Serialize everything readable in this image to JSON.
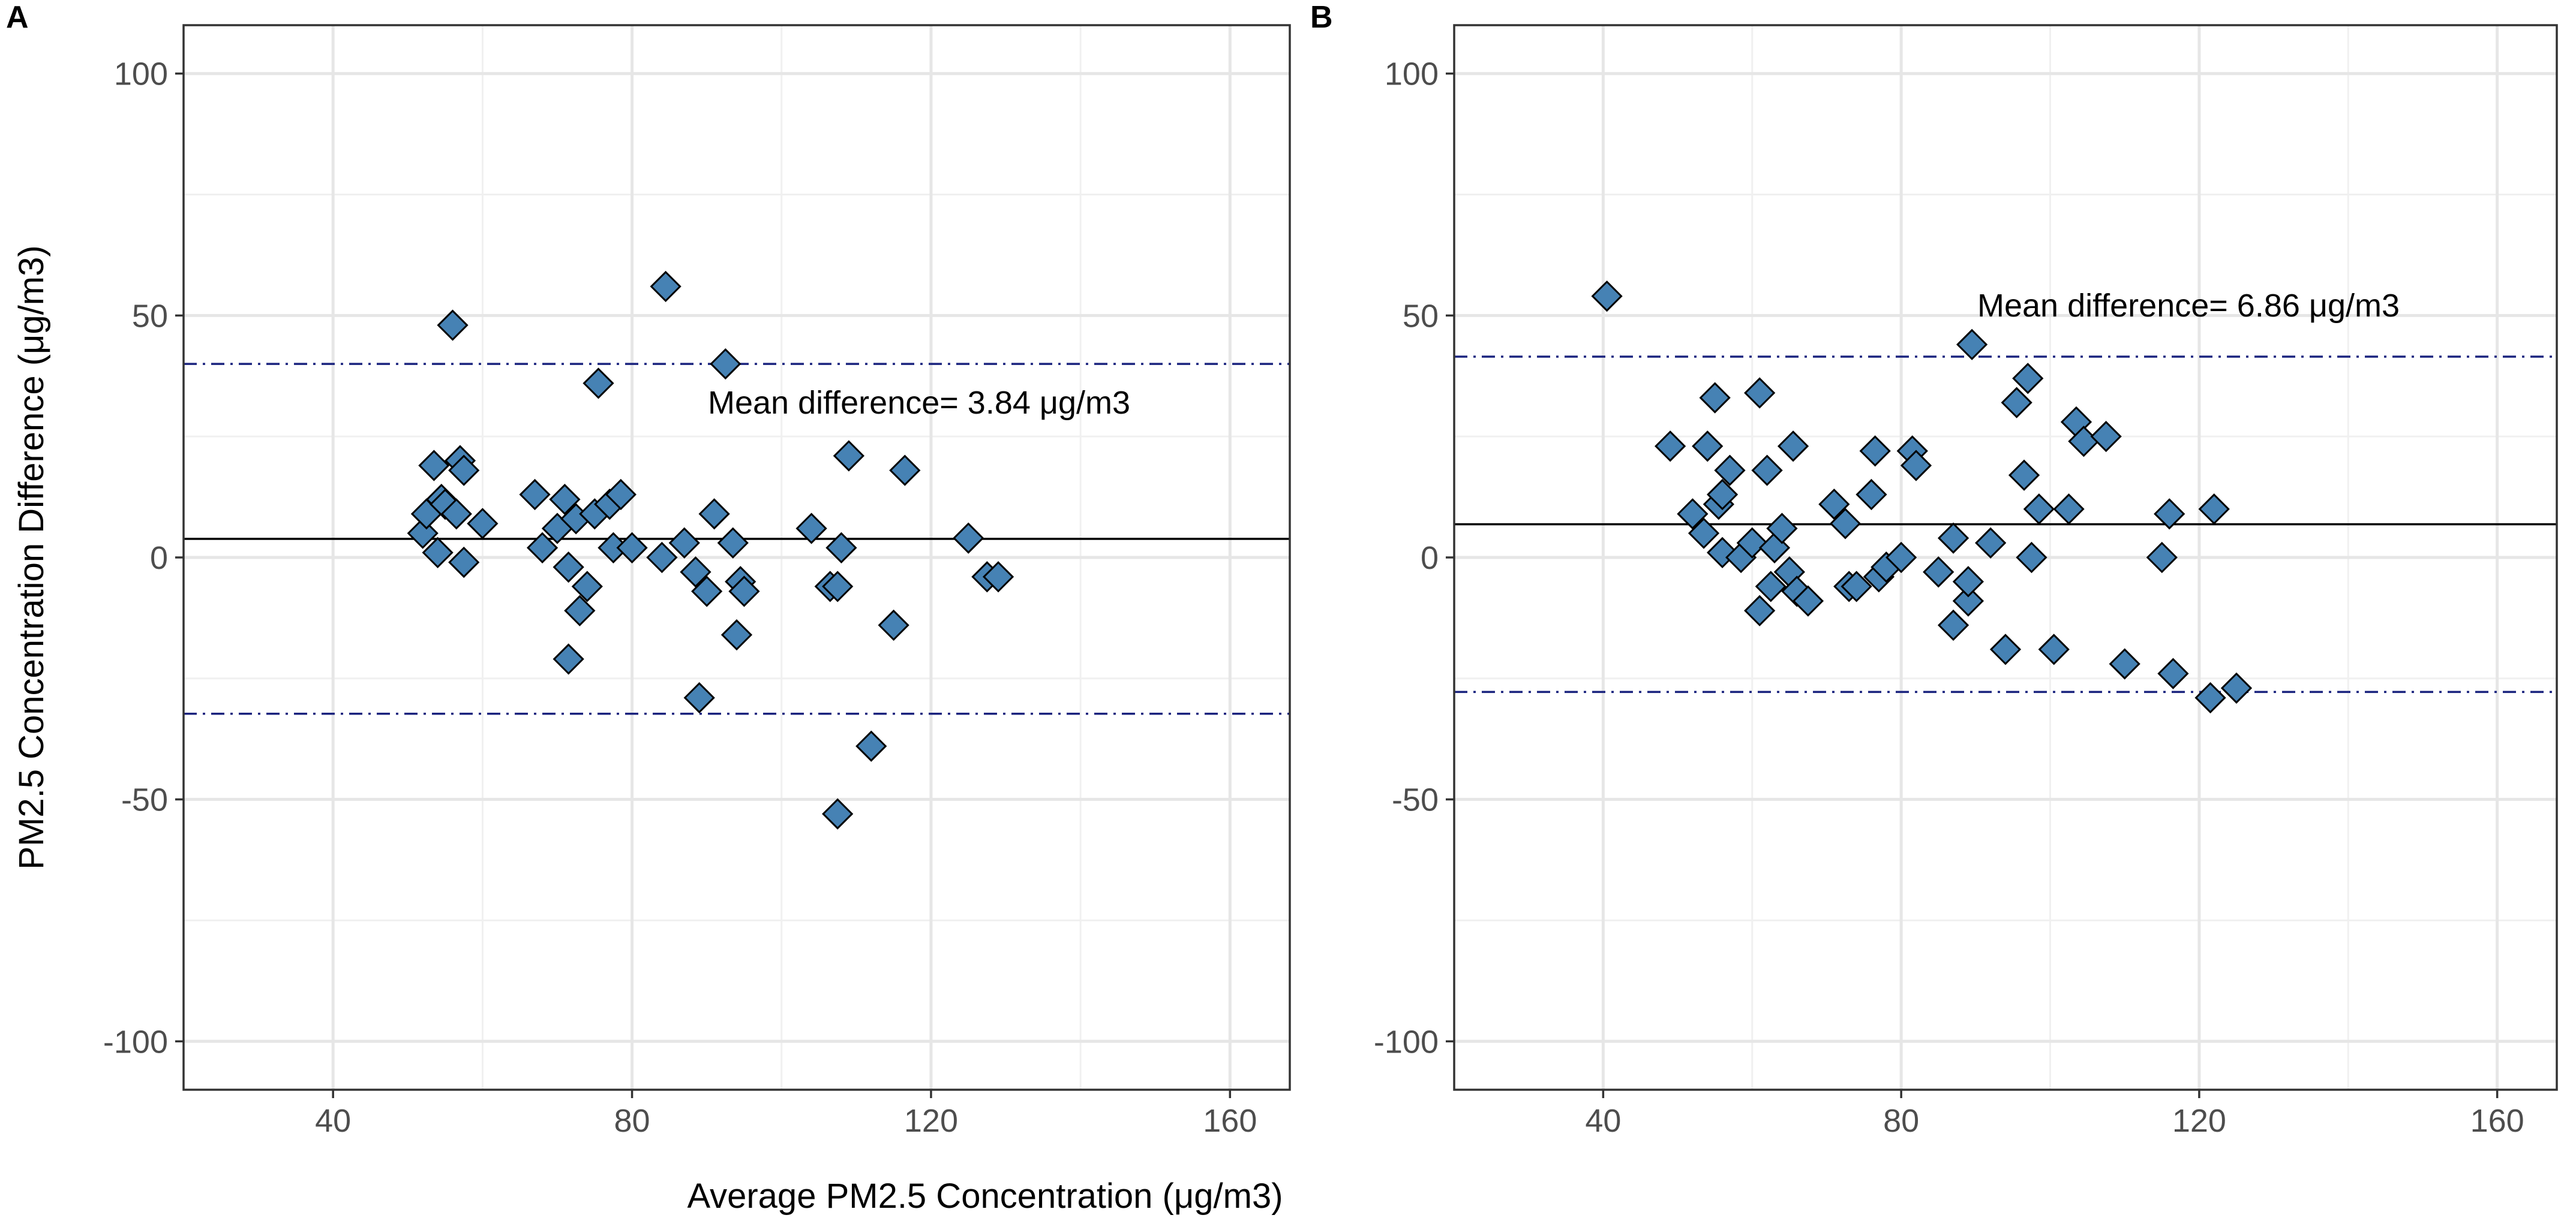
{
  "figure": {
    "xlabel": "Average PM2.5 Concentration (μg/m3)",
    "ylabel": "PM2.5 Concentration Difference (μg/m3)"
  },
  "chart_data": [
    {
      "type": "scatter",
      "panel_label": "A",
      "xlim": [
        20,
        168
      ],
      "ylim": [
        -110,
        110
      ],
      "x_ticks": [
        40,
        80,
        120,
        160
      ],
      "y_ticks": [
        -100,
        -50,
        0,
        50,
        100
      ],
      "x_tick_labels": [
        "40",
        "80",
        "120",
        "160"
      ],
      "y_tick_labels": [
        "-100",
        "-50",
        "0",
        "50",
        "100"
      ],
      "grid": true,
      "mean_difference": 3.84,
      "upper_limit": 40,
      "lower_limit": -32.3,
      "annotation": "Mean difference= 3.84 μg/m3",
      "marker_color": "#4682B4",
      "limit_line_color": "#1a237e",
      "points": [
        [
          52,
          5
        ],
        [
          52.5,
          9
        ],
        [
          53.5,
          19
        ],
        [
          54,
          1
        ],
        [
          54.5,
          12
        ],
        [
          55,
          11
        ],
        [
          56,
          48
        ],
        [
          56.5,
          9
        ],
        [
          57,
          20
        ],
        [
          57.5,
          18
        ],
        [
          57.5,
          -1
        ],
        [
          60,
          7
        ],
        [
          67,
          13
        ],
        [
          68,
          2
        ],
        [
          70,
          6
        ],
        [
          71,
          12
        ],
        [
          71.5,
          -2
        ],
        [
          71.5,
          -21
        ],
        [
          72.5,
          8
        ],
        [
          73,
          -11
        ],
        [
          74,
          -6
        ],
        [
          75,
          9
        ],
        [
          75.5,
          36
        ],
        [
          77,
          11
        ],
        [
          77.5,
          2
        ],
        [
          78.5,
          13
        ],
        [
          80,
          2
        ],
        [
          84,
          0
        ],
        [
          84.5,
          56
        ],
        [
          87,
          3
        ],
        [
          88.5,
          -3
        ],
        [
          89,
          -29
        ],
        [
          90,
          -7
        ],
        [
          91,
          9
        ],
        [
          92.5,
          40
        ],
        [
          93.5,
          3
        ],
        [
          94,
          -16
        ],
        [
          94.5,
          -5
        ],
        [
          95,
          -7
        ],
        [
          104,
          6
        ],
        [
          106.5,
          -6
        ],
        [
          107.5,
          -6
        ],
        [
          107.5,
          -53
        ],
        [
          108,
          2
        ],
        [
          109,
          21
        ],
        [
          112,
          -39
        ],
        [
          115,
          -14
        ],
        [
          116.5,
          18
        ],
        [
          125,
          4
        ],
        [
          127.5,
          -4
        ],
        [
          129,
          -4
        ]
      ]
    },
    {
      "type": "scatter",
      "panel_label": "B",
      "xlim": [
        20,
        168
      ],
      "ylim": [
        -110,
        110
      ],
      "x_ticks": [
        40,
        80,
        120,
        160
      ],
      "y_ticks": [
        -100,
        -50,
        0,
        50,
        100
      ],
      "x_tick_labels": [
        "40",
        "80",
        "120",
        "160"
      ],
      "y_tick_labels": [
        "-100",
        "-50",
        "0",
        "50",
        "100"
      ],
      "grid": true,
      "mean_difference": 6.86,
      "upper_limit": 41.5,
      "lower_limit": -27.8,
      "annotation": "Mean difference= 6.86 μg/m3",
      "marker_color": "#4682B4",
      "limit_line_color": "#1a237e",
      "points": [
        [
          40.5,
          54
        ],
        [
          49,
          23
        ],
        [
          52,
          9
        ],
        [
          53.5,
          5
        ],
        [
          54,
          23
        ],
        [
          55,
          33
        ],
        [
          55.5,
          11
        ],
        [
          56,
          13
        ],
        [
          56,
          1
        ],
        [
          57,
          18
        ],
        [
          58.5,
          0
        ],
        [
          60,
          3
        ],
        [
          61,
          34
        ],
        [
          61,
          -11
        ],
        [
          62,
          18
        ],
        [
          62.5,
          -6
        ],
        [
          63,
          2
        ],
        [
          64,
          6
        ],
        [
          65,
          -3
        ],
        [
          65.5,
          23
        ],
        [
          66,
          -7
        ],
        [
          67.5,
          -9
        ],
        [
          71,
          11
        ],
        [
          72.5,
          7
        ],
        [
          73,
          -6
        ],
        [
          74,
          -6
        ],
        [
          76,
          13
        ],
        [
          76.5,
          22
        ],
        [
          77,
          -4
        ],
        [
          78,
          -2
        ],
        [
          80,
          0
        ],
        [
          81.5,
          22
        ],
        [
          82,
          19
        ],
        [
          85,
          -3
        ],
        [
          87,
          4
        ],
        [
          87,
          -14
        ],
        [
          89,
          -9
        ],
        [
          89,
          -5
        ],
        [
          89.5,
          44
        ],
        [
          92,
          3
        ],
        [
          94,
          -19
        ],
        [
          95.5,
          32
        ],
        [
          96.5,
          17
        ],
        [
          97,
          37
        ],
        [
          97.5,
          0
        ],
        [
          98.5,
          10
        ],
        [
          100.5,
          -19
        ],
        [
          102.5,
          10
        ],
        [
          103.5,
          28
        ],
        [
          104.5,
          24
        ],
        [
          107.5,
          25
        ],
        [
          110,
          -22
        ],
        [
          115,
          0
        ],
        [
          116,
          9
        ],
        [
          116.5,
          -24
        ],
        [
          121.5,
          -29
        ],
        [
          122,
          10
        ],
        [
          125,
          -27
        ]
      ]
    }
  ]
}
